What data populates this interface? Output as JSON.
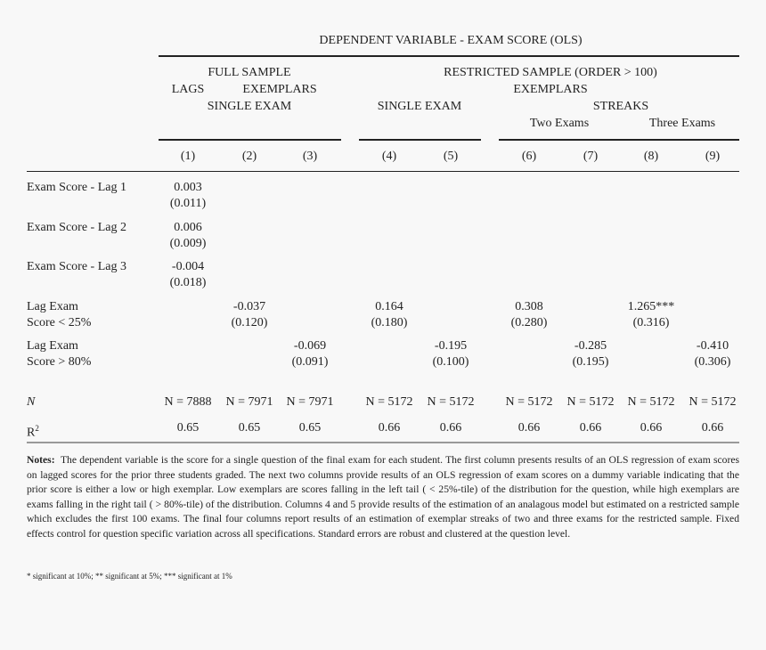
{
  "header": {
    "dependent": "DEPENDENT VARIABLE - EXAM SCORE (OLS)",
    "full_sample": "FULL SAMPLE",
    "lags": "LAGS",
    "exemplars_full": "EXEMPLARS",
    "single_exam_full": "SINGLE EXAM",
    "restricted_sample": "RESTRICTED SAMPLE (ORDER > 100)",
    "exemplars_restricted": "EXEMPLARS",
    "single_exam_restricted": "SINGLE EXAM",
    "streaks": "STREAKS",
    "two_exams": "Two Exams",
    "three_exams": "Three Exams"
  },
  "columns": [
    "(1)",
    "(2)",
    "(3)",
    "(4)",
    "(5)",
    "(6)",
    "(7)",
    "(8)",
    "(9)"
  ],
  "rows": [
    {
      "label": [
        "Exam Score - Lag 1"
      ],
      "cells": [
        [
          "0.003",
          "(0.011)"
        ],
        null,
        null,
        null,
        null,
        null,
        null,
        null,
        null
      ]
    },
    {
      "label": [
        "Exam Score - Lag 2"
      ],
      "cells": [
        [
          "0.006",
          "(0.009)"
        ],
        null,
        null,
        null,
        null,
        null,
        null,
        null,
        null
      ]
    },
    {
      "label": [
        "Exam Score - Lag 3"
      ],
      "cells": [
        [
          "-0.004",
          "(0.018)"
        ],
        null,
        null,
        null,
        null,
        null,
        null,
        null,
        null
      ]
    },
    {
      "label": [
        "Lag Exam",
        "Score < 25%"
      ],
      "cells": [
        null,
        [
          "-0.037",
          "(0.120)"
        ],
        null,
        [
          "0.164",
          "(0.180)"
        ],
        null,
        [
          "0.308",
          "(0.280)"
        ],
        null,
        [
          "1.265***",
          "(0.316)"
        ],
        null
      ]
    },
    {
      "label": [
        "Lag Exam",
        "Score > 80%"
      ],
      "cells": [
        null,
        null,
        [
          "-0.069",
          "(0.091)"
        ],
        null,
        [
          "-0.195",
          "(0.100)"
        ],
        null,
        [
          "-0.285",
          "(0.195)"
        ],
        null,
        [
          "-0.410",
          "(0.306)"
        ]
      ]
    }
  ],
  "n_row": {
    "label": "N",
    "values": [
      "N = 7888",
      "N = 7971",
      "N = 7971",
      "N = 5172",
      "N = 5172",
      "N = 5172",
      "N = 5172",
      "N = 5172",
      "N = 5172"
    ]
  },
  "r2_row": {
    "label": "R",
    "sup": "2",
    "values": [
      "0.65",
      "0.65",
      "0.65",
      "0.66",
      "0.66",
      "0.66",
      "0.66",
      "0.66",
      "0.66"
    ]
  },
  "notes": {
    "label": "Notes:",
    "text": "The dependent variable is the score for a single question of the final exam for each student.  The first column presents results of an OLS regression of exam scores on lagged scores for the prior three students graded.  The next two columns provide results of an OLS regression of exam scores on a dummy variable indicating that the prior score is either a low or high exemplar.  Low exemplars are scores falling in the left tail ( < 25%-tile) of the distribution for the question, while high exemplars are exams falling in the right tail ( > 80%-tile) of the distribution.  Columns 4 and 5 provide results of the estimation of an analagous model but estimated on a restricted sample which excludes the first 100 exams.  The final four columns report results of an estimation of exemplar streaks of two and three exams for the restricted sample.  Fixed effects control for question specific variation across all specifications.  Standard errors are robust and clustered at the question level.",
    "significance": "* significant at 10%; ** significant at 5%; *** significant at 1%"
  }
}
